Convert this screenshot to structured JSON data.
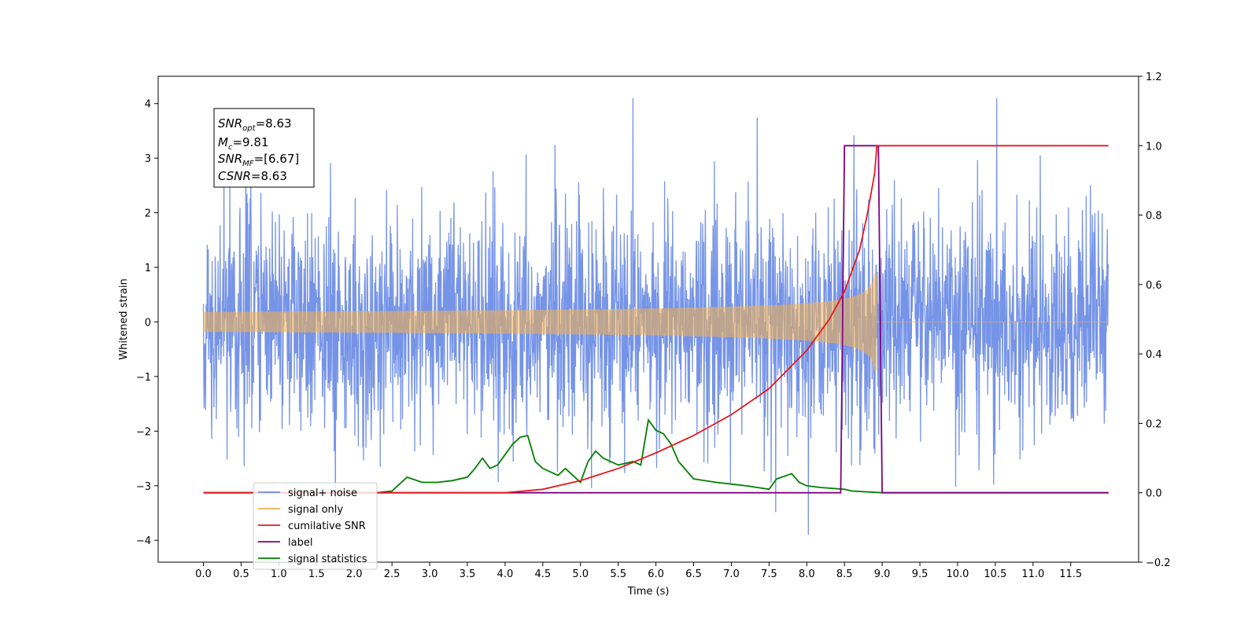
{
  "chart_data": {
    "type": "line",
    "xlabel": "Time (s)",
    "ylabel_left": "Whitened strain",
    "ylabel_right": "",
    "xlim": [
      -0.6,
      12.4
    ],
    "ylim_left": [
      -4.4,
      4.5
    ],
    "ylim_right": [
      -0.2,
      1.2
    ],
    "x_ticks": [
      "0.0",
      "0.5",
      "1.0",
      "1.5",
      "2.0",
      "2.5",
      "3.0",
      "3.5",
      "4.0",
      "4.5",
      "5.0",
      "5.5",
      "6.0",
      "6.5",
      "7.0",
      "7.5",
      "8.0",
      "8.5",
      "9.0",
      "9.5",
      "10.0",
      "10.5",
      "11.0",
      "11.5"
    ],
    "y_ticks_left": [
      "4",
      "3",
      "2",
      "1",
      "0",
      "−1",
      "−2",
      "−3",
      "−4"
    ],
    "y_ticks_right": [
      "1.2",
      "1.0",
      "0.8",
      "0.6",
      "0.4",
      "0.2",
      "0.0",
      "−0.2"
    ],
    "grid": false,
    "legend_position": "lower-left",
    "annotation": {
      "snr_opt": {
        "base": "SNR",
        "sub": "opt",
        "value": "=8.63"
      },
      "mc": {
        "base": "M",
        "sub": "c",
        "value": "=9.81"
      },
      "snr_mf": {
        "base": "SNR",
        "sub": "MF",
        "value": "=[6.67]"
      },
      "csnr": {
        "base": "CSNR",
        "value": "=8.63"
      }
    },
    "series": [
      {
        "name": "signal+ noise",
        "color": "#6f8ee6",
        "axis": "left",
        "kind": "noise",
        "x_range": [
          0.0,
          12.0
        ],
        "approx_std": 0.85,
        "approx_range": [
          -3.9,
          4.1
        ]
      },
      {
        "name": "signal only",
        "color": "#f5b04a",
        "axis": "left",
        "kind": "chirp",
        "x_range": [
          0.0,
          12.0
        ],
        "merger_time": 8.9,
        "peak_amplitude": 0.9
      },
      {
        "name": "cumilative SNR",
        "color": "#e41a1c",
        "axis": "right",
        "x": [
          0.0,
          4.0,
          4.5,
          5.0,
          5.5,
          6.0,
          6.5,
          7.0,
          7.5,
          8.0,
          8.3,
          8.5,
          8.7,
          8.8,
          8.9,
          8.93,
          8.96,
          12.0
        ],
        "y": [
          0.0,
          0.0,
          0.01,
          0.035,
          0.07,
          0.115,
          0.165,
          0.225,
          0.3,
          0.41,
          0.5,
          0.58,
          0.7,
          0.8,
          0.92,
          1.0,
          1.0,
          1.0
        ]
      },
      {
        "name": "label",
        "color": "#800080",
        "axis": "right",
        "x": [
          0.0,
          8.45,
          8.5,
          8.9,
          8.95,
          9.0,
          12.0
        ],
        "y": [
          0.0,
          0.0,
          1.0,
          1.0,
          1.0,
          0.0,
          0.0
        ]
      },
      {
        "name": "signal statistics",
        "color": "#008000",
        "axis": "right",
        "x": [
          0.0,
          2.3,
          2.5,
          2.7,
          2.9,
          3.1,
          3.3,
          3.5,
          3.6,
          3.7,
          3.8,
          3.9,
          4.0,
          4.1,
          4.2,
          4.3,
          4.4,
          4.5,
          4.7,
          4.8,
          5.0,
          5.1,
          5.2,
          5.3,
          5.5,
          5.7,
          5.8,
          5.9,
          6.0,
          6.1,
          6.2,
          6.3,
          6.5,
          6.8,
          7.0,
          7.2,
          7.5,
          7.6,
          7.8,
          7.9,
          8.0,
          8.2,
          8.5,
          8.6,
          9.0,
          12.0
        ],
        "y": [
          0.0,
          0.0,
          0.005,
          0.045,
          0.03,
          0.03,
          0.035,
          0.045,
          0.07,
          0.1,
          0.07,
          0.08,
          0.11,
          0.14,
          0.16,
          0.165,
          0.09,
          0.07,
          0.05,
          0.07,
          0.03,
          0.09,
          0.12,
          0.1,
          0.08,
          0.09,
          0.08,
          0.21,
          0.18,
          0.17,
          0.14,
          0.09,
          0.04,
          0.03,
          0.025,
          0.02,
          0.01,
          0.04,
          0.055,
          0.03,
          0.02,
          0.015,
          0.01,
          0.005,
          0.0,
          0.0
        ]
      }
    ]
  }
}
